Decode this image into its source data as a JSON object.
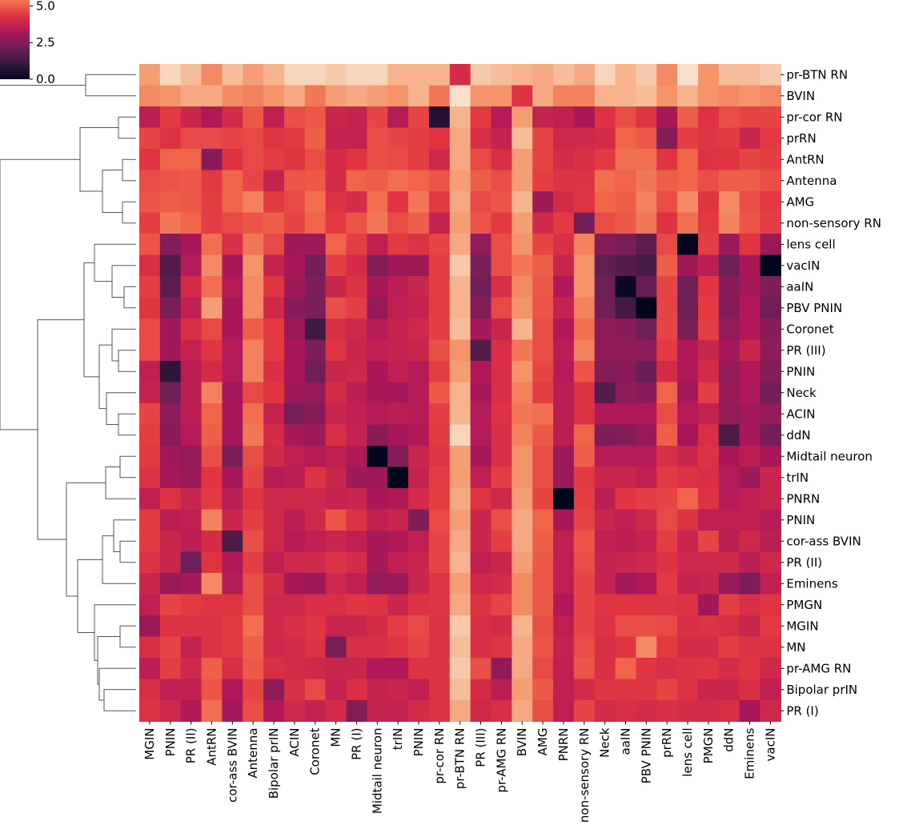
{
  "chart_data": {
    "type": "heatmap",
    "title": "",
    "xlabel": "",
    "ylabel": "",
    "colormap": "rocket",
    "value_range": [
      0,
      6.5
    ],
    "colorbar": {
      "ticks": [
        5.0,
        2.5,
        0.0
      ],
      "tick_labels": [
        "5.0",
        "2.5",
        "0.0"
      ]
    },
    "dendrogram": "row",
    "row_labels": [
      "pr-BTN RN",
      "BVIN",
      "pr-cor RN",
      "prRN",
      "AntRN",
      "Antenna",
      "AMG",
      "non-sensory RN",
      "lens cell",
      "vacIN",
      "aaIN",
      "PBV PNIN",
      "Coronet",
      "PR (III)",
      "PNIN",
      "Neck",
      "ACIN",
      "ddN",
      "Midtail neuron",
      "trIN",
      "PNRN",
      "PNIN",
      "cor-ass BVIN",
      "PR (II)",
      "Eminens",
      "PMGN",
      "MGIN",
      "MN",
      "pr-AMG RN",
      "Bipolar prIN",
      "PR (I)"
    ],
    "col_labels": [
      "MGIN",
      "PNIN",
      "PR (II)",
      "AntRN",
      "cor-ass BVIN",
      "Antenna",
      "Bipolar prIN",
      "ACIN",
      "Coronet",
      "MN",
      "PR (I)",
      "Midtail neuron",
      "trIN",
      "PNIN",
      "pr-cor RN",
      "pr-BTN RN",
      "PR (III)",
      "pr-AMG RN",
      "BVIN",
      "AMG",
      "PNRN",
      "non-sensory RN",
      "Neck",
      "aaIN",
      "PBV PNIN",
      "prRN",
      "lens cell",
      "PMGN",
      "ddN",
      "Eminens",
      "vacIN"
    ],
    "values": [
      [
        5.8,
        6.3,
        6.1,
        5.6,
        6.1,
        5.8,
        6.0,
        6.3,
        6.3,
        6.2,
        6.3,
        6.3,
        6.0,
        6.0,
        6.0,
        4.0,
        6.2,
        6.1,
        6.0,
        5.9,
        6.1,
        5.9,
        6.3,
        6.0,
        6.2,
        5.6,
        6.4,
        5.7,
        6.1,
        6.1,
        6.2
      ],
      [
        5.6,
        5.7,
        5.9,
        5.9,
        5.6,
        5.5,
        5.7,
        5.9,
        5.4,
        5.8,
        5.9,
        5.8,
        5.7,
        6.0,
        5.4,
        6.4,
        5.7,
        5.7,
        4.2,
        5.9,
        5.5,
        5.5,
        6.0,
        6.0,
        6.1,
        5.7,
        6.0,
        5.7,
        5.6,
        5.7,
        5.6
      ],
      [
        3.5,
        4.4,
        3.8,
        3.3,
        4.0,
        5.0,
        3.6,
        4.8,
        5.0,
        3.8,
        3.7,
        4.6,
        3.4,
        4.6,
        0.7,
        6.0,
        4.4,
        3.4,
        5.8,
        3.7,
        3.6,
        3.2,
        4.2,
        4.8,
        4.3,
        3.2,
        5.1,
        4.2,
        4.8,
        4.6,
        4.6
      ],
      [
        4.6,
        4.2,
        4.7,
        4.7,
        4.6,
        4.7,
        4.3,
        4.4,
        5.1,
        3.7,
        3.7,
        4.8,
        4.6,
        4.5,
        4.3,
        5.9,
        4.1,
        3.7,
        6.1,
        4.6,
        3.9,
        3.9,
        4.0,
        5.2,
        5.0,
        2.5,
        4.5,
        4.3,
        4.4,
        3.8,
        4.4
      ],
      [
        4.3,
        5.2,
        5.2,
        2.6,
        4.2,
        4.7,
        4.5,
        4.3,
        4.8,
        4.0,
        4.3,
        4.8,
        4.7,
        4.5,
        3.9,
        5.9,
        4.7,
        4.1,
        5.8,
        4.6,
        4.0,
        4.1,
        4.4,
        5.3,
        5.3,
        4.3,
        5.2,
        4.2,
        4.3,
        4.6,
        4.5
      ],
      [
        4.8,
        4.9,
        5.0,
        4.4,
        5.2,
        4.6,
        3.7,
        4.9,
        5.0,
        4.0,
        5.2,
        5.1,
        5.3,
        5.2,
        4.9,
        5.8,
        5.1,
        4.8,
        5.8,
        4.5,
        4.2,
        4.2,
        5.3,
        5.2,
        5.4,
        5.1,
        5.2,
        4.8,
        5.1,
        5.1,
        4.8
      ],
      [
        4.9,
        5.1,
        5.0,
        4.5,
        5.2,
        5.5,
        4.4,
        4.7,
        5.3,
        4.2,
        4.0,
        5.3,
        4.3,
        5.4,
        4.4,
        5.9,
        4.7,
        4.9,
        6.0,
        3.0,
        4.0,
        4.3,
        5.2,
        5.1,
        5.5,
        4.8,
        5.6,
        4.3,
        5.6,
        4.8,
        4.4
      ],
      [
        4.5,
        5.4,
        5.2,
        4.5,
        4.7,
        4.9,
        5.1,
        4.6,
        5.2,
        4.4,
        4.9,
        5.4,
        4.8,
        5.1,
        3.7,
        5.8,
        4.9,
        4.4,
        5.8,
        3.9,
        4.4,
        2.2,
        4.8,
        5.0,
        5.4,
        4.2,
        5.3,
        4.4,
        5.5,
        4.9,
        4.5
      ],
      [
        4.9,
        2.5,
        3.2,
        5.3,
        4.1,
        5.4,
        4.7,
        3.0,
        3.0,
        5.2,
        4.5,
        3.6,
        4.4,
        4.2,
        4.6,
        5.9,
        2.8,
        4.8,
        5.7,
        4.6,
        4.1,
        5.5,
        2.5,
        2.3,
        1.8,
        4.7,
        0.0,
        4.5,
        3.0,
        4.3,
        2.9
      ],
      [
        4.1,
        1.6,
        3.4,
        5.6,
        3.2,
        5.7,
        3.7,
        3.2,
        2.2,
        4.5,
        4.0,
        2.5,
        3.0,
        3.0,
        4.5,
        6.2,
        2.3,
        4.8,
        5.4,
        5.1,
        3.8,
        5.7,
        1.9,
        1.6,
        1.4,
        5.1,
        3.0,
        3.5,
        2.1,
        3.2,
        0.0
      ],
      [
        4.5,
        1.8,
        4.0,
        5.3,
        3.4,
        5.6,
        4.3,
        3.0,
        2.4,
        3.8,
        4.2,
        3.2,
        3.5,
        3.8,
        4.5,
        6.0,
        2.2,
        4.1,
        5.6,
        5.0,
        3.3,
        5.7,
        2.1,
        0.2,
        2.0,
        4.6,
        2.2,
        4.3,
        2.6,
        3.1,
        2.4
      ],
      [
        4.3,
        2.3,
        3.6,
        5.8,
        3.2,
        5.6,
        3.9,
        2.6,
        2.3,
        4.8,
        4.5,
        2.8,
        3.6,
        3.7,
        4.5,
        6.0,
        2.5,
        4.7,
        5.7,
        4.9,
        3.7,
        5.5,
        2.2,
        1.3,
        0.0,
        4.6,
        2.1,
        4.4,
        2.5,
        3.3,
        2.1
      ],
      [
        4.7,
        3.0,
        4.1,
        4.7,
        3.2,
        5.1,
        4.4,
        2.9,
        1.2,
        4.1,
        3.9,
        3.4,
        3.7,
        3.9,
        4.5,
        6.1,
        3.1,
        3.8,
        6.0,
        4.8,
        3.3,
        5.3,
        2.7,
        2.6,
        2.1,
        4.6,
        2.3,
        4.5,
        2.8,
        3.3,
        2.6
      ],
      [
        4.7,
        3.0,
        3.7,
        4.3,
        3.4,
        5.5,
        4.4,
        3.2,
        2.4,
        4.3,
        3.8,
        3.6,
        3.7,
        3.8,
        4.8,
        5.7,
        1.6,
        4.1,
        5.4,
        4.8,
        3.5,
        5.5,
        2.7,
        2.7,
        2.7,
        4.4,
        3.3,
        3.8,
        3.1,
        3.8,
        2.7
      ],
      [
        3.6,
        0.9,
        3.5,
        4.0,
        3.4,
        5.5,
        4.1,
        3.1,
        2.1,
        3.8,
        3.9,
        3.2,
        3.6,
        3.4,
        4.5,
        5.8,
        3.3,
        4.1,
        5.7,
        4.6,
        3.4,
        4.9,
        2.5,
        2.6,
        2.0,
        4.0,
        3.3,
        4.0,
        2.8,
        3.3,
        2.5
      ],
      [
        3.7,
        2.1,
        3.5,
        5.5,
        3.1,
        4.7,
        4.3,
        3.0,
        2.8,
        4.0,
        3.5,
        3.2,
        3.1,
        3.4,
        5.0,
        6.0,
        3.2,
        4.1,
        5.5,
        4.5,
        3.5,
        4.2,
        1.6,
        2.7,
        2.6,
        5.2,
        3.1,
        4.5,
        2.9,
        3.3,
        2.2
      ],
      [
        4.6,
        2.7,
        3.5,
        5.2,
        3.2,
        5.3,
        3.7,
        2.3,
        2.6,
        3.8,
        3.6,
        3.4,
        3.5,
        3.4,
        4.5,
        6.0,
        3.4,
        4.2,
        5.4,
        5.3,
        3.5,
        4.2,
        3.3,
        3.3,
        3.3,
        4.8,
        3.4,
        3.7,
        2.8,
        3.1,
        2.8
      ],
      [
        4.5,
        2.6,
        3.4,
        5.1,
        3.1,
        5.4,
        4.0,
        3.1,
        3.0,
        4.1,
        3.7,
        2.6,
        3.1,
        3.3,
        4.4,
        6.3,
        3.4,
        4.1,
        5.5,
        5.0,
        3.5,
        5.2,
        2.4,
        2.5,
        2.8,
        5.1,
        3.2,
        4.1,
        1.5,
        3.1,
        2.2
      ],
      [
        4.4,
        3.0,
        2.8,
        4.8,
        2.3,
        4.8,
        3.9,
        3.6,
        3.4,
        3.6,
        3.3,
        0.0,
        2.5,
        3.8,
        4.3,
        5.8,
        3.2,
        4.1,
        5.7,
        4.8,
        2.9,
        5.1,
        3.4,
        3.4,
        3.4,
        4.1,
        3.8,
        4.2,
        3.2,
        3.5,
        3.2
      ],
      [
        4.2,
        3.1,
        2.9,
        4.3,
        3.1,
        4.6,
        3.4,
        3.5,
        4.2,
        3.8,
        3.0,
        3.0,
        0.0,
        3.7,
        4.5,
        5.8,
        3.6,
        4.5,
        5.7,
        4.8,
        2.9,
        4.4,
        3.8,
        3.8,
        3.6,
        4.4,
        4.2,
        4.1,
        3.4,
        3.0,
        3.8
      ],
      [
        3.6,
        4.2,
        3.8,
        4.4,
        3.5,
        4.3,
        3.9,
        3.9,
        3.9,
        3.7,
        3.8,
        3.2,
        3.3,
        4.0,
        4.5,
        5.9,
        4.3,
        3.9,
        5.8,
        4.6,
        0.0,
        4.5,
        3.5,
        4.3,
        4.5,
        4.6,
        5.2,
        4.2,
        3.4,
        3.6,
        3.8
      ],
      [
        4.4,
        3.5,
        3.6,
        5.5,
        3.8,
        4.5,
        3.9,
        3.5,
        3.9,
        4.9,
        4.2,
        3.6,
        3.8,
        2.4,
        4.7,
        5.8,
        3.8,
        4.8,
        5.9,
        5.2,
        3.2,
        4.6,
        3.8,
        3.6,
        3.9,
        4.7,
        4.2,
        3.6,
        3.6,
        3.6,
        3.4
      ],
      [
        4.4,
        3.8,
        3.5,
        4.0,
        1.5,
        4.8,
        3.9,
        3.4,
        3.6,
        3.8,
        3.6,
        3.1,
        3.3,
        3.6,
        4.6,
        5.9,
        3.8,
        4.5,
        5.9,
        5.1,
        3.6,
        4.9,
        3.6,
        3.5,
        3.7,
        4.5,
        3.8,
        4.6,
        3.5,
        3.9,
        3.5
      ],
      [
        4.2,
        3.8,
        2.1,
        4.3,
        3.3,
        4.5,
        3.6,
        3.9,
        3.9,
        4.2,
        4.0,
        3.1,
        3.6,
        3.8,
        4.6,
        6.0,
        3.6,
        3.8,
        5.8,
        5.0,
        3.6,
        4.8,
        3.7,
        3.8,
        3.9,
        4.2,
        3.9,
        3.9,
        3.9,
        3.5,
        3.9
      ],
      [
        3.8,
        2.9,
        3.1,
        5.6,
        3.4,
        4.8,
        4.0,
        3.1,
        3.0,
        3.9,
        3.6,
        2.8,
        2.9,
        3.8,
        4.3,
        5.8,
        3.9,
        4.0,
        5.6,
        5.0,
        3.6,
        4.6,
        3.7,
        3.1,
        3.3,
        4.4,
        3.7,
        3.8,
        2.9,
        2.4,
        3.6
      ],
      [
        3.6,
        4.6,
        4.4,
        4.3,
        4.3,
        4.8,
        3.9,
        3.9,
        4.1,
        4.1,
        4.3,
        4.2,
        3.8,
        4.2,
        4.3,
        5.9,
        4.2,
        4.6,
        5.6,
        5.0,
        3.3,
        4.6,
        4.3,
        4.3,
        4.3,
        4.3,
        4.2,
        3.0,
        4.5,
        4.1,
        4.3
      ],
      [
        2.9,
        4.2,
        4.2,
        4.2,
        4.4,
        5.3,
        3.9,
        4.1,
        4.3,
        3.8,
        3.8,
        4.0,
        4.5,
        4.7,
        4.2,
        6.2,
        4.1,
        4.0,
        6.0,
        4.8,
        3.6,
        4.6,
        4.2,
        4.8,
        4.8,
        4.7,
        4.1,
        4.2,
        4.1,
        3.8,
        4.4
      ],
      [
        4.1,
        4.6,
        3.7,
        4.2,
        4.4,
        5.1,
        3.9,
        4.0,
        4.2,
        2.3,
        4.1,
        4.1,
        4.3,
        4.6,
        4.2,
        6.1,
        4.1,
        4.3,
        5.9,
        4.9,
        3.7,
        4.8,
        4.1,
        4.3,
        5.6,
        4.4,
        4.0,
        4.0,
        4.5,
        4.2,
        4.2
      ],
      [
        3.5,
        4.5,
        3.9,
        5.1,
        4.1,
        5.0,
        4.1,
        4.0,
        3.9,
        3.8,
        3.8,
        3.3,
        3.3,
        4.2,
        4.2,
        6.2,
        4.8,
        2.7,
        5.9,
        4.7,
        3.6,
        4.9,
        4.1,
        5.2,
        4.3,
        4.1,
        4.2,
        4.3,
        4.0,
        4.3,
        3.9
      ],
      [
        4.1,
        3.6,
        3.6,
        4.9,
        3.3,
        4.6,
        2.7,
        4.1,
        4.7,
        3.7,
        4.1,
        3.7,
        3.8,
        3.6,
        4.2,
        6.1,
        4.0,
        3.5,
        5.8,
        5.0,
        3.6,
        4.0,
        4.3,
        4.3,
        4.3,
        4.6,
        4.2,
        3.8,
        3.8,
        4.1,
        3.6
      ],
      [
        4.2,
        3.9,
        3.3,
        5.3,
        3.1,
        4.8,
        3.3,
        3.9,
        3.7,
        4.0,
        2.5,
        3.7,
        3.7,
        4.0,
        4.2,
        5.9,
        3.9,
        4.1,
        5.9,
        4.8,
        3.6,
        4.6,
        4.0,
        4.1,
        4.0,
        4.1,
        4.0,
        4.0,
        4.1,
        3.2,
        3.9
      ]
    ]
  }
}
